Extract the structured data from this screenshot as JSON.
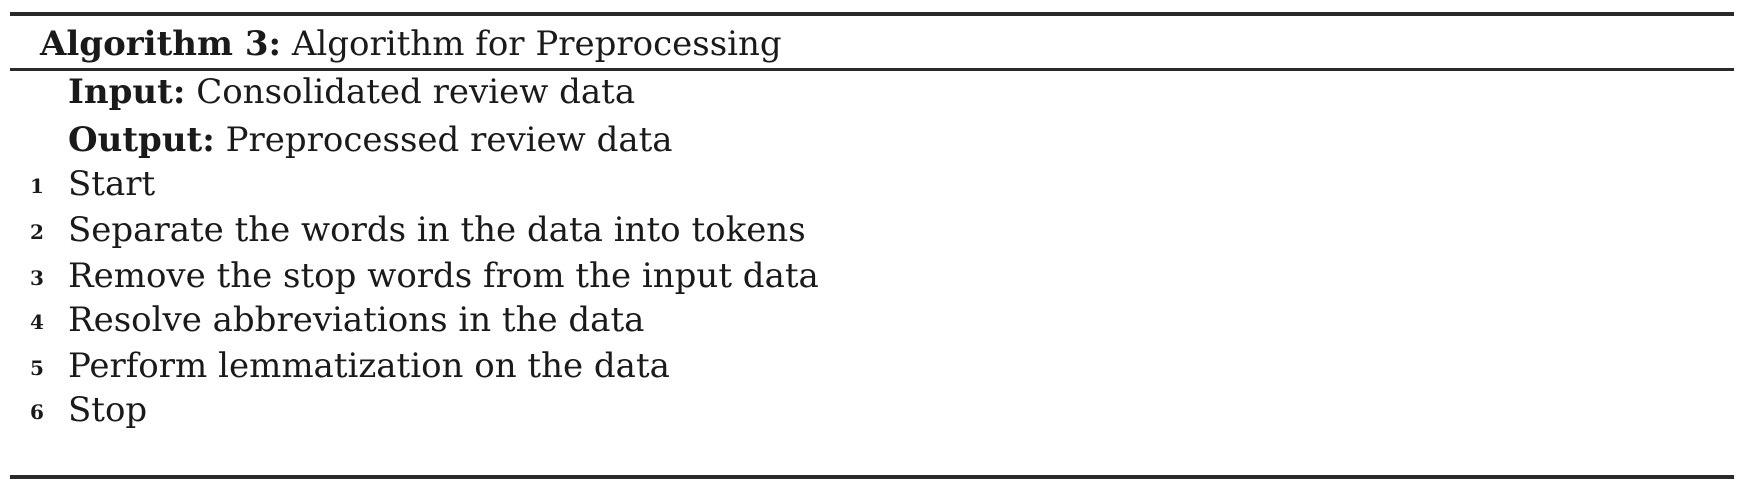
{
  "algorithm": {
    "label": "Algorithm 3:",
    "title": "Algorithm for Preprocessing",
    "input_keyword": "Input:",
    "input_value": "Consolidated review data",
    "output_keyword": "Output:",
    "output_value": "Preprocessed review data",
    "steps": [
      {
        "num": "1",
        "text": "Start"
      },
      {
        "num": "2",
        "text": "Separate the words in the data into tokens"
      },
      {
        "num": "3",
        "text": "Remove the stop words from the input data"
      },
      {
        "num": "4",
        "text": "Resolve abbreviations in the data"
      },
      {
        "num": "5",
        "text": "Perform lemmatization on the data"
      },
      {
        "num": "6",
        "text": "Stop"
      }
    ]
  }
}
